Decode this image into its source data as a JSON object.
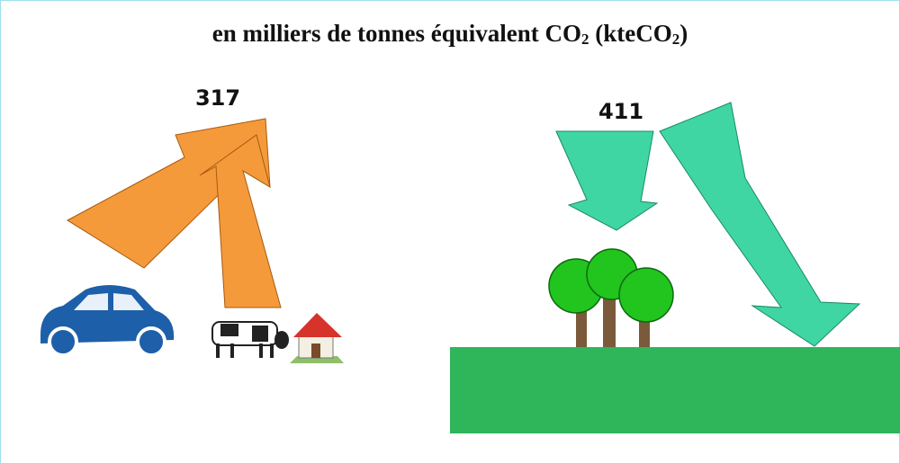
{
  "title": {
    "parts": [
      "en milliers de tonnes équivalent CO",
      "2",
      " (kteCO",
      "2",
      ")"
    ]
  },
  "emissions": {
    "value": 317
  },
  "sequestration": {
    "value": 411
  }
}
